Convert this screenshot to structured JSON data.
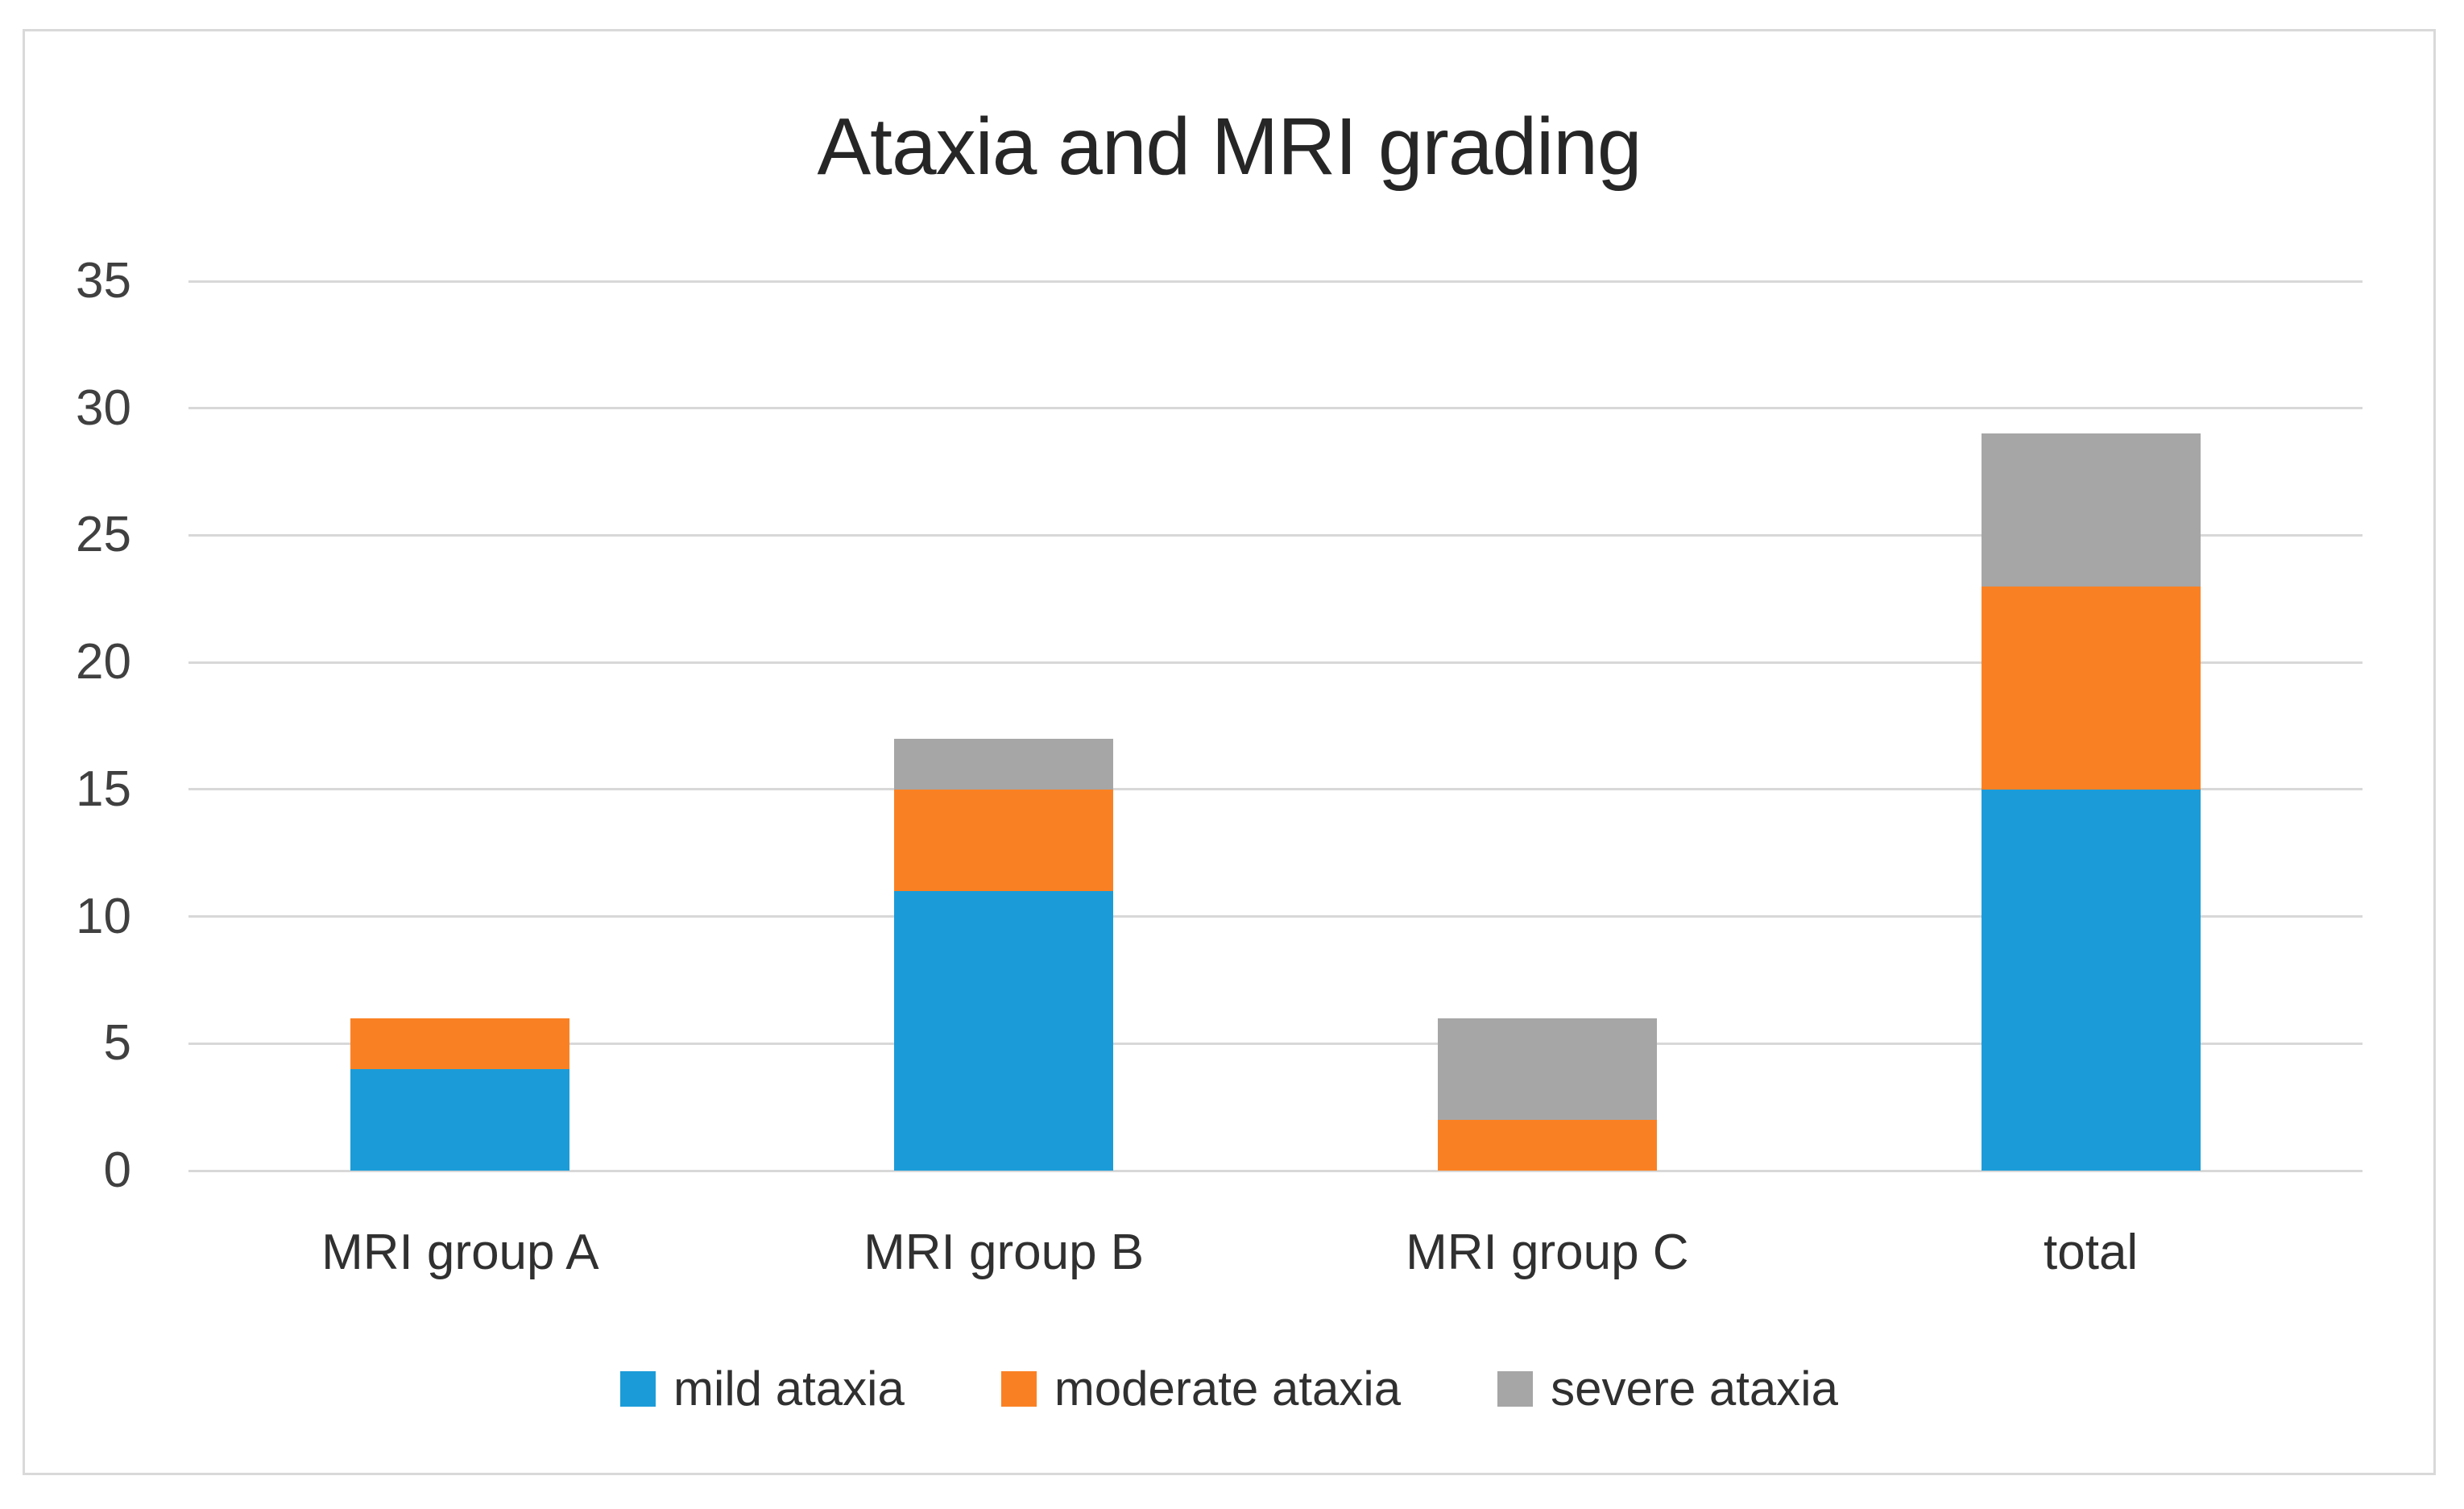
{
  "title": "Ataxia and MRI grading",
  "chart_data": {
    "type": "bar",
    "stacked": true,
    "title": "Ataxia and MRI grading",
    "categories": [
      "MRI group A",
      "MRI group B",
      "MRI group C",
      "total"
    ],
    "series": [
      {
        "name": "mild ataxia",
        "color": "#1B9CD8",
        "values": [
          4,
          11,
          0,
          15
        ]
      },
      {
        "name": "moderate ataxia",
        "color": "#FA8123",
        "values": [
          2,
          4,
          2,
          8
        ]
      },
      {
        "name": "severe ataxia",
        "color": "#A6A6A6",
        "values": [
          0,
          2,
          4,
          6
        ]
      }
    ],
    "stack_totals": [
      6,
      17,
      6,
      29
    ],
    "xlabel": "",
    "ylabel": "",
    "ylim": [
      0,
      35
    ],
    "yticks": [
      0,
      5,
      10,
      15,
      20,
      25,
      30,
      35
    ],
    "grid": true,
    "gridline_color": "#D8D8D8",
    "legend_position": "bottom"
  },
  "colors": {
    "frame_border": "#D9D9D9",
    "background": "#ffffff",
    "title_text": "#262626",
    "axis_text": "#404040"
  }
}
